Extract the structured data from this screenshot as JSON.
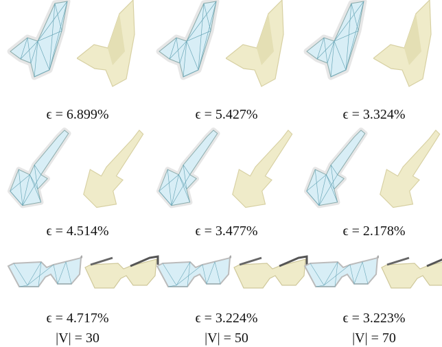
{
  "rows": [
    {
      "shape": "bird",
      "captions": [
        "ϵ = 6.899%",
        "ϵ = 5.427%",
        "ϵ = 3.324%"
      ]
    },
    {
      "shape": "guitar",
      "captions": [
        "ϵ = 4.514%",
        "ϵ = 3.477%",
        "ϵ = 2.178%"
      ]
    },
    {
      "shape": "glasses",
      "captions": [
        "ϵ = 4.717%",
        "ϵ = 3.224%",
        "ϵ = 3.223%"
      ]
    }
  ],
  "columns": [
    "|V| = 30",
    "|V| = 50",
    "|V| = 70"
  ]
}
